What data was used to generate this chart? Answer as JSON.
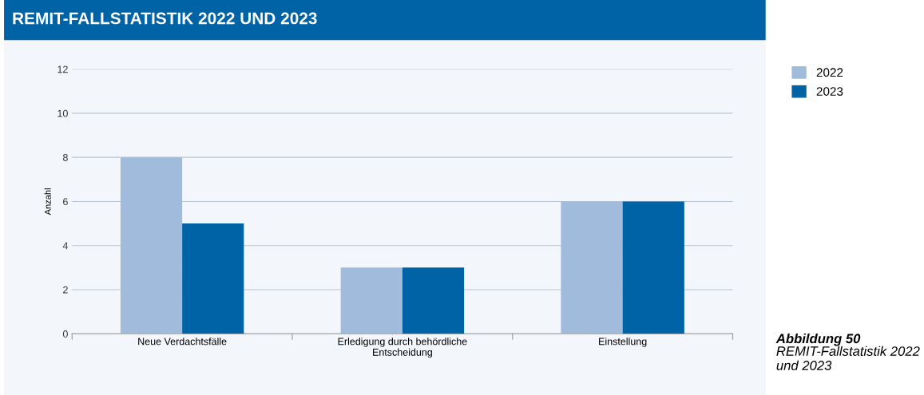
{
  "chart_data": {
    "type": "bar",
    "title": "REMIT-FALLSTATISTIK 2022 UND 2023",
    "ylabel": "Anzahl",
    "categories": [
      "Neue Verdachtsfälle",
      "Erledigung durch behördliche\nEntscheidung",
      "Einstellung"
    ],
    "series": [
      {
        "name": "2022",
        "color": "#a0bbdb",
        "values": [
          8,
          3,
          6
        ]
      },
      {
        "name": "2023",
        "color": "#0063a6",
        "values": [
          5,
          3,
          6
        ]
      }
    ],
    "ylim": [
      0,
      12
    ],
    "yticks": [
      0,
      2,
      4,
      6,
      8,
      10,
      12
    ],
    "grid": "y",
    "legend": "right",
    "annotations": [
      "Abbildung 50",
      "REMIT-Fallstatistik 2022 und 2023"
    ]
  }
}
